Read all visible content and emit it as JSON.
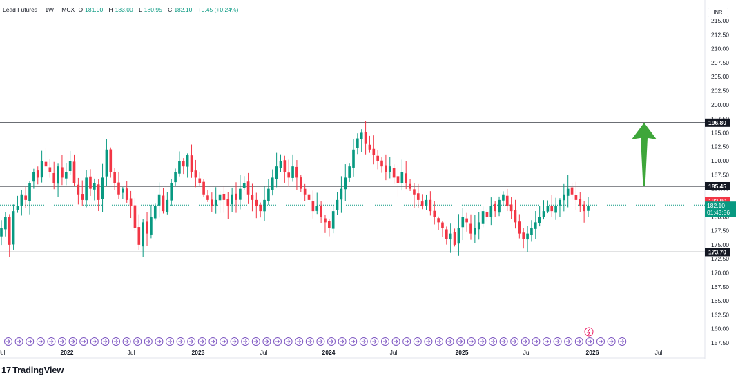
{
  "header": {
    "symbol": "Lead Futures",
    "interval": "1W",
    "exchange": "MCX",
    "open_label": "O",
    "open": "181.90",
    "high_label": "H",
    "high": "183.00",
    "low_label": "L",
    "low": "180.95",
    "close_label": "C",
    "close": "182.10",
    "change": "+0.45 (+0.24%)"
  },
  "currency": "INR",
  "brand": {
    "mark": "17",
    "name": "TradingView"
  },
  "colors": {
    "up": "#089981",
    "down": "#f23645",
    "arrow": "#3ea63a",
    "line": "#131722"
  },
  "price_axis": {
    "ticks": [
      "215.00",
      "212.50",
      "210.00",
      "207.50",
      "205.00",
      "202.50",
      "200.00",
      "197.50",
      "195.00",
      "192.50",
      "190.00",
      "187.50",
      "185.00",
      "182.50",
      "180.00",
      "177.50",
      "175.00",
      "172.50",
      "170.00",
      "167.50",
      "165.00",
      "162.50",
      "160.00",
      "157.50"
    ]
  },
  "time_axis": {
    "labels": [
      "Jul",
      "2022",
      "Jul",
      "2023",
      "Jul",
      "2024",
      "Jul",
      "2025",
      "Jul",
      "2026",
      "Jul"
    ]
  },
  "chart_data": {
    "type": "candlestick",
    "title": "Lead Futures · 1W · MCX",
    "ylim": [
      156,
      216
    ],
    "x_range": [
      "2021-07",
      "2026-08"
    ],
    "horizontal_levels": [
      {
        "label": "196.80",
        "value": 196.8,
        "style": "black"
      },
      {
        "label": "185.45",
        "value": 185.45,
        "style": "black"
      },
      {
        "label": "173.70",
        "value": 173.7,
        "style": "black"
      }
    ],
    "price_labels": [
      {
        "label": "182.80",
        "value": 182.8,
        "style": "red"
      },
      {
        "label": "182.10",
        "value": 182.1,
        "style": "green"
      },
      {
        "label": "01:43:56",
        "value": 182.1,
        "style": "green-timer"
      }
    ],
    "last_price": 182.1,
    "arrow": {
      "direction": "up",
      "from": 185.45,
      "to": 196.8
    },
    "series": [
      {
        "x": "2021-07",
        "values": [
          178,
          180,
          175,
          181,
          182,
          184,
          183,
          186,
          188,
          187,
          190,
          189,
          188,
          186,
          189,
          187,
          188,
          190,
          186,
          184,
          183,
          187,
          185,
          186,
          183,
          187,
          192,
          188,
          186,
          184,
          185,
          183,
          182,
          178,
          175,
          179,
          177,
          180,
          182,
          184,
          181,
          183,
          186,
          188,
          190,
          189,
          191,
          188,
          187,
          186,
          184,
          183,
          182,
          183,
          184,
          183,
          182,
          184,
          183,
          185,
          186,
          184,
          183,
          182,
          181,
          183,
          185,
          187,
          189,
          190,
          188,
          187,
          189,
          187,
          185,
          184,
          183,
          181,
          182,
          180,
          179,
          178,
          181,
          183,
          185,
          187,
          189,
          192,
          194,
          195,
          193,
          192,
          191,
          190,
          189,
          188,
          189,
          187,
          186,
          188,
          186,
          185,
          184,
          183,
          182,
          183,
          181,
          180,
          179,
          178,
          176,
          177,
          175,
          178,
          180,
          179,
          177,
          178,
          179,
          181,
          180,
          182,
          181,
          183,
          184,
          182,
          181,
          179,
          177,
          176,
          177,
          178,
          179,
          180,
          181,
          182,
          181,
          182,
          183,
          184,
          185,
          184,
          183,
          182,
          181,
          182
        ]
      }
    ]
  }
}
